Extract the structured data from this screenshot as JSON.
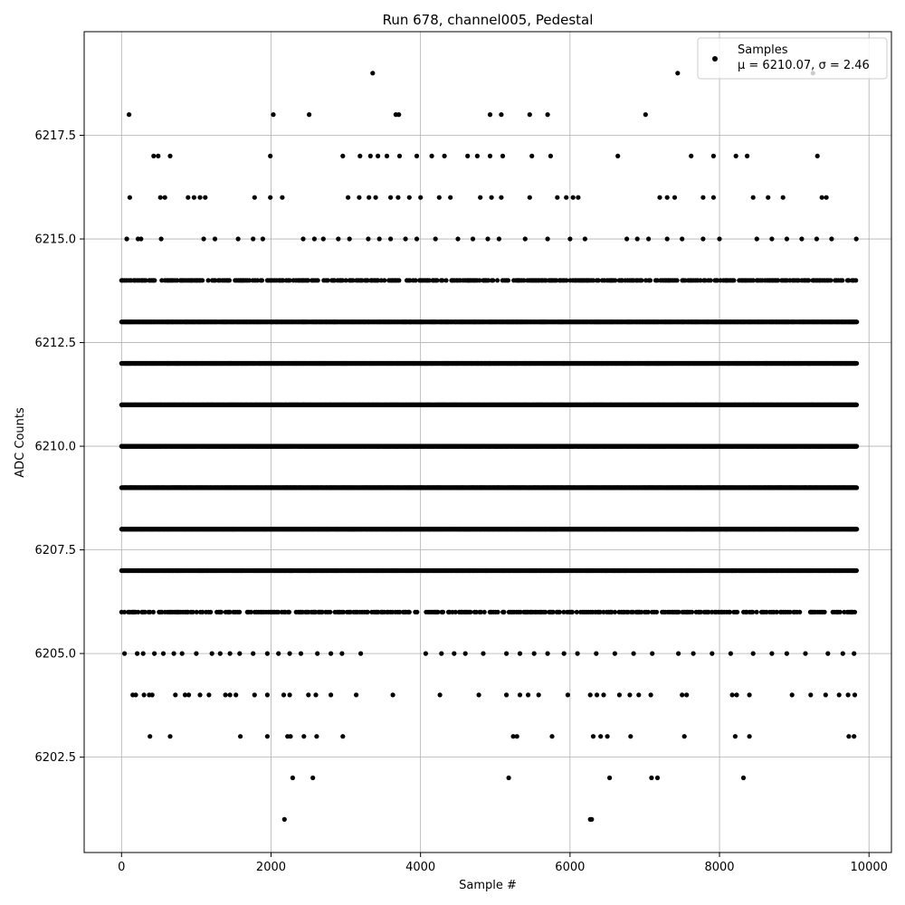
{
  "chart_data": {
    "type": "scatter",
    "title": "Run 678, channel005, Pedestal",
    "xlabel": "Sample #",
    "ylabel": "ADC Counts",
    "xlim": [
      -500,
      10300
    ],
    "ylim": [
      6200.2,
      6220.0
    ],
    "xticks": [
      0,
      2000,
      4000,
      6000,
      8000,
      10000
    ],
    "xtick_labels": [
      "0",
      "2000",
      "4000",
      "6000",
      "8000",
      "10000"
    ],
    "yticks": [
      6202.5,
      6205.0,
      6207.5,
      6210.0,
      6212.5,
      6215.0,
      6217.5
    ],
    "ytick_labels": [
      "6202.5",
      "6205.0",
      "6207.5",
      "6210.0",
      "6212.5",
      "6215.0",
      "6217.5"
    ],
    "grid": true,
    "legend_position": "top-right",
    "legend_label": "Samples",
    "legend_stats": "μ = 6210.07, σ = 2.46",
    "point_color": "#000000",
    "grid_color": "#b0b0b0",
    "series": [
      {
        "name": "Samples",
        "points": [
          [
            2180,
            6201
          ],
          [
            6270,
            6201
          ],
          [
            6290,
            6201
          ],
          [
            2290,
            6202
          ],
          [
            2560,
            6202
          ],
          [
            5180,
            6202
          ],
          [
            6530,
            6202
          ],
          [
            7090,
            6202
          ],
          [
            7170,
            6202
          ],
          [
            8320,
            6202
          ],
          [
            380,
            6203
          ],
          [
            650,
            6203
          ],
          [
            1590,
            6203
          ],
          [
            1950,
            6203
          ],
          [
            2220,
            6203
          ],
          [
            2260,
            6203
          ],
          [
            2440,
            6203
          ],
          [
            2610,
            6203
          ],
          [
            2960,
            6203
          ],
          [
            5240,
            6203
          ],
          [
            5290,
            6203
          ],
          [
            5760,
            6203
          ],
          [
            6310,
            6203
          ],
          [
            6410,
            6203
          ],
          [
            6500,
            6203
          ],
          [
            6810,
            6203
          ],
          [
            7530,
            6203
          ],
          [
            8210,
            6203
          ],
          [
            8400,
            6203
          ],
          [
            9730,
            6203
          ],
          [
            9800,
            6203
          ],
          [
            150,
            6204
          ],
          [
            190,
            6204
          ],
          [
            300,
            6204
          ],
          [
            370,
            6204
          ],
          [
            410,
            6204
          ],
          [
            720,
            6204
          ],
          [
            850,
            6204
          ],
          [
            900,
            6204
          ],
          [
            1050,
            6204
          ],
          [
            1170,
            6204
          ],
          [
            1390,
            6204
          ],
          [
            1450,
            6204
          ],
          [
            1530,
            6204
          ],
          [
            1780,
            6204
          ],
          [
            1950,
            6204
          ],
          [
            2170,
            6204
          ],
          [
            2250,
            6204
          ],
          [
            2500,
            6204
          ],
          [
            2600,
            6204
          ],
          [
            2800,
            6204
          ],
          [
            3140,
            6204
          ],
          [
            3630,
            6204
          ],
          [
            4260,
            6204
          ],
          [
            4780,
            6204
          ],
          [
            5150,
            6204
          ],
          [
            5330,
            6204
          ],
          [
            5440,
            6204
          ],
          [
            5580,
            6204
          ],
          [
            5970,
            6204
          ],
          [
            6270,
            6204
          ],
          [
            6360,
            6204
          ],
          [
            6450,
            6204
          ],
          [
            6660,
            6204
          ],
          [
            6800,
            6204
          ],
          [
            6920,
            6204
          ],
          [
            7080,
            6204
          ],
          [
            7500,
            6204
          ],
          [
            7560,
            6204
          ],
          [
            8170,
            6204
          ],
          [
            8230,
            6204
          ],
          [
            8400,
            6204
          ],
          [
            8970,
            6204
          ],
          [
            9220,
            6204
          ],
          [
            9420,
            6204
          ],
          [
            9600,
            6204
          ],
          [
            9720,
            6204
          ],
          [
            9810,
            6204
          ],
          [
            40,
            6205
          ],
          [
            210,
            6205
          ],
          [
            290,
            6205
          ],
          [
            440,
            6205
          ],
          [
            560,
            6205
          ],
          [
            700,
            6205
          ],
          [
            810,
            6205
          ],
          [
            1000,
            6205
          ],
          [
            1210,
            6205
          ],
          [
            1320,
            6205
          ],
          [
            1450,
            6205
          ],
          [
            1580,
            6205
          ],
          [
            1760,
            6205
          ],
          [
            1950,
            6205
          ],
          [
            2100,
            6205
          ],
          [
            2250,
            6205
          ],
          [
            2400,
            6205
          ],
          [
            2620,
            6205
          ],
          [
            2800,
            6205
          ],
          [
            2950,
            6205
          ],
          [
            3200,
            6205
          ],
          [
            4070,
            6205
          ],
          [
            4280,
            6205
          ],
          [
            4450,
            6205
          ],
          [
            4600,
            6205
          ],
          [
            4840,
            6205
          ],
          [
            5150,
            6205
          ],
          [
            5330,
            6205
          ],
          [
            5520,
            6205
          ],
          [
            5700,
            6205
          ],
          [
            5920,
            6205
          ],
          [
            6100,
            6205
          ],
          [
            6350,
            6205
          ],
          [
            6600,
            6205
          ],
          [
            6850,
            6205
          ],
          [
            7100,
            6205
          ],
          [
            7450,
            6205
          ],
          [
            7650,
            6205
          ],
          [
            7900,
            6205
          ],
          [
            8150,
            6205
          ],
          [
            8450,
            6205
          ],
          [
            8700,
            6205
          ],
          [
            8900,
            6205
          ],
          [
            9150,
            6205
          ],
          [
            9450,
            6205
          ],
          [
            9650,
            6205
          ],
          [
            9800,
            6205
          ],
          [
            9250,
            6219
          ],
          [
            7440,
            6219
          ],
          [
            3360,
            6219
          ],
          [
            100,
            6218
          ],
          [
            2030,
            6218
          ],
          [
            2510,
            6218
          ],
          [
            3670,
            6218
          ],
          [
            3710,
            6218
          ],
          [
            4930,
            6218
          ],
          [
            5080,
            6218
          ],
          [
            5460,
            6218
          ],
          [
            5700,
            6218
          ],
          [
            7010,
            6218
          ],
          [
            430,
            6217
          ],
          [
            490,
            6217
          ],
          [
            650,
            6217
          ],
          [
            1990,
            6217
          ],
          [
            2960,
            6217
          ],
          [
            3190,
            6217
          ],
          [
            3330,
            6217
          ],
          [
            3430,
            6217
          ],
          [
            3550,
            6217
          ],
          [
            3720,
            6217
          ],
          [
            3950,
            6217
          ],
          [
            4150,
            6217
          ],
          [
            4320,
            6217
          ],
          [
            4630,
            6217
          ],
          [
            4760,
            6217
          ],
          [
            4930,
            6217
          ],
          [
            5100,
            6217
          ],
          [
            5490,
            6217
          ],
          [
            5740,
            6217
          ],
          [
            6640,
            6217
          ],
          [
            7620,
            6217
          ],
          [
            7920,
            6217
          ],
          [
            8220,
            6217
          ],
          [
            8370,
            6217
          ],
          [
            9310,
            6217
          ],
          [
            110,
            6216
          ],
          [
            520,
            6216
          ],
          [
            580,
            6216
          ],
          [
            890,
            6216
          ],
          [
            970,
            6216
          ],
          [
            1050,
            6216
          ],
          [
            1120,
            6216
          ],
          [
            1780,
            6216
          ],
          [
            1990,
            6216
          ],
          [
            2150,
            6216
          ],
          [
            3030,
            6216
          ],
          [
            3180,
            6216
          ],
          [
            3310,
            6216
          ],
          [
            3400,
            6216
          ],
          [
            3600,
            6216
          ],
          [
            3700,
            6216
          ],
          [
            3850,
            6216
          ],
          [
            4000,
            6216
          ],
          [
            4250,
            6216
          ],
          [
            4400,
            6216
          ],
          [
            4800,
            6216
          ],
          [
            4950,
            6216
          ],
          [
            5080,
            6216
          ],
          [
            5460,
            6216
          ],
          [
            5830,
            6216
          ],
          [
            5950,
            6216
          ],
          [
            6040,
            6216
          ],
          [
            6110,
            6216
          ],
          [
            7200,
            6216
          ],
          [
            7300,
            6216
          ],
          [
            7400,
            6216
          ],
          [
            7780,
            6216
          ],
          [
            7920,
            6216
          ],
          [
            8450,
            6216
          ],
          [
            8650,
            6216
          ],
          [
            8850,
            6216
          ],
          [
            9370,
            6216
          ],
          [
            9430,
            6216
          ],
          [
            70,
            6215
          ],
          [
            220,
            6215
          ],
          [
            260,
            6215
          ],
          [
            530,
            6215
          ],
          [
            1100,
            6215
          ],
          [
            1250,
            6215
          ],
          [
            1560,
            6215
          ],
          [
            1760,
            6215
          ],
          [
            1890,
            6215
          ],
          [
            2430,
            6215
          ],
          [
            2580,
            6215
          ],
          [
            2700,
            6215
          ],
          [
            2900,
            6215
          ],
          [
            3050,
            6215
          ],
          [
            3300,
            6215
          ],
          [
            3450,
            6215
          ],
          [
            3600,
            6215
          ],
          [
            3800,
            6215
          ],
          [
            3950,
            6215
          ],
          [
            4200,
            6215
          ],
          [
            4500,
            6215
          ],
          [
            4700,
            6215
          ],
          [
            4900,
            6215
          ],
          [
            5050,
            6215
          ],
          [
            5400,
            6215
          ],
          [
            5700,
            6215
          ],
          [
            6000,
            6215
          ],
          [
            6200,
            6215
          ],
          [
            6760,
            6215
          ],
          [
            6900,
            6215
          ],
          [
            7050,
            6215
          ],
          [
            7300,
            6215
          ],
          [
            7500,
            6215
          ],
          [
            7780,
            6215
          ],
          [
            8000,
            6215
          ],
          [
            8500,
            6215
          ],
          [
            8700,
            6215
          ],
          [
            8900,
            6215
          ],
          [
            9100,
            6215
          ],
          [
            9300,
            6215
          ],
          [
            9500,
            6215
          ],
          [
            9830,
            6215
          ]
        ],
        "dense_rows": [
          6206,
          6207,
          6208,
          6209,
          6210,
          6211,
          6212,
          6213,
          6214
        ],
        "dense_rows_x_range": [
          0,
          9840
        ]
      }
    ]
  }
}
